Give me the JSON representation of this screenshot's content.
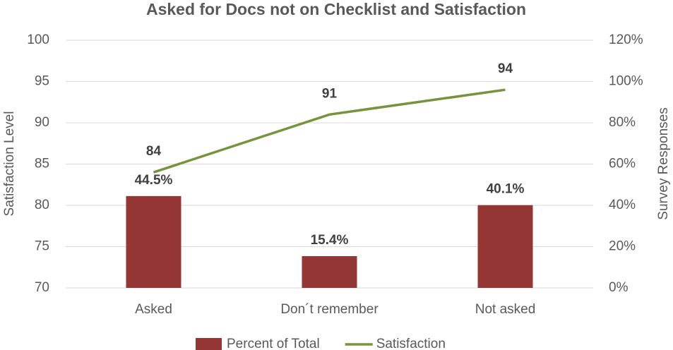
{
  "chart_data": {
    "type": "combo",
    "title": "Asked for Docs not on Checklist and Satisfaction",
    "y_label": "Satisfaction Level",
    "y2_label": "Survey Responses",
    "categories": [
      "Asked",
      "Don´t remember",
      "Not asked"
    ],
    "series": [
      {
        "name": "Percent of Total",
        "type": "bar",
        "axis": "y2",
        "color": "#943634",
        "values": [
          44.5,
          15.4,
          40.1
        ],
        "value_labels": [
          "44.5%",
          "15.4%",
          "40.1%"
        ]
      },
      {
        "name": "Satisfaction",
        "type": "line",
        "color": "#77933c",
        "values": [
          84,
          91,
          94
        ]
      }
    ],
    "ylim": [
      70,
      100
    ],
    "yticks": [
      70,
      75,
      80,
      85,
      90,
      95,
      100
    ],
    "y2lim": [
      0,
      120
    ],
    "y2ticks": [
      {
        "value": 0,
        "label": "0%"
      },
      {
        "value": 20,
        "label": "20%"
      },
      {
        "value": 40,
        "label": "40%"
      },
      {
        "value": 60,
        "label": "60%"
      },
      {
        "value": 80,
        "label": "80%"
      },
      {
        "value": 100,
        "label": "100%"
      },
      {
        "value": 120,
        "label": "120%"
      }
    ],
    "grid": true,
    "legend": "bottom"
  }
}
